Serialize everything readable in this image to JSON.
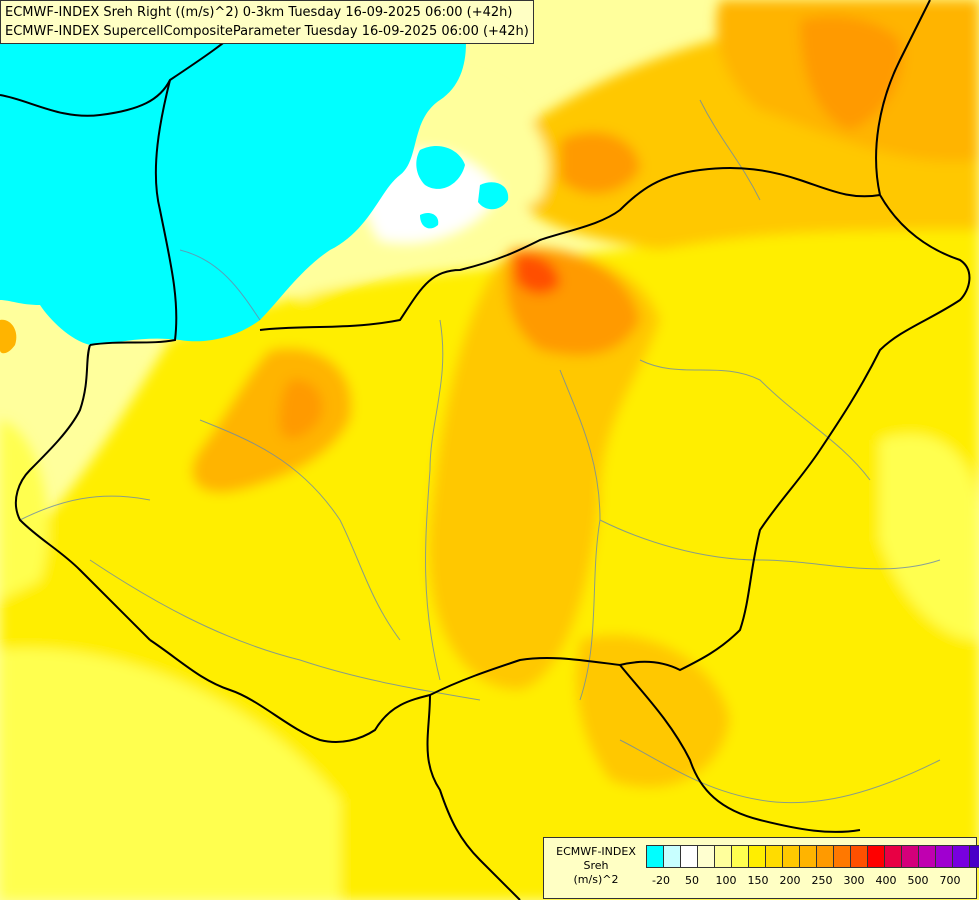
{
  "title": {
    "line1": "ECMWF-INDEX Sreh Right ((m/s)^2) 0-3km Tuesday 16-09-2025 06:00 (+42h)",
    "line2": "ECMWF-INDEX SupercellCompositeParameter Tuesday 16-09-2025 06:00 (+42h)"
  },
  "legend": {
    "line1": "ECMWF-INDEX",
    "line2": "Sreh",
    "line3": "(m/s)^2",
    "colors": [
      "#00ffff",
      "#c8ffff",
      "#ffffff",
      "#ffffd0",
      "#ffff9c",
      "#ffff50",
      "#ffee00",
      "#ffdc00",
      "#ffc800",
      "#ffb400",
      "#ff9a00",
      "#ff7800",
      "#ff5000",
      "#ff0000",
      "#e80044",
      "#d4007a",
      "#c000b0",
      "#a000d0",
      "#7800e0",
      "#4800c8",
      "#000090"
    ],
    "ticks": [
      "-20",
      "50",
      "100",
      "150",
      "200",
      "250",
      "300",
      "400",
      "500",
      "700"
    ]
  }
}
